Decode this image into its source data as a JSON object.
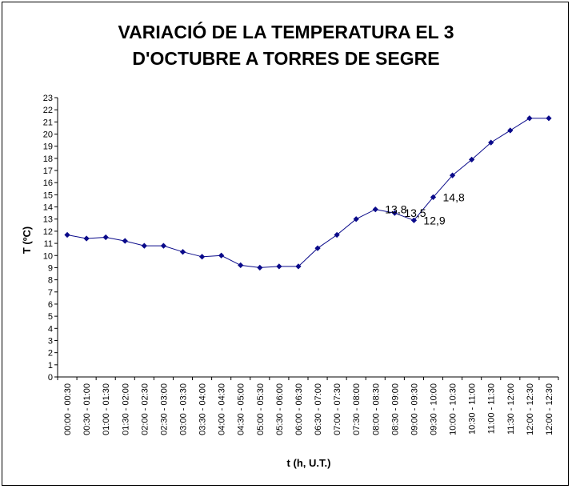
{
  "chart_data": {
    "type": "line",
    "title_lines": [
      "VARIACIÓ DE LA TEMPERATURA EL 3",
      "D'OCTUBRE A TORRES DE SEGRE"
    ],
    "xlabel": "t (h, U.T.)",
    "ylabel": "T (ºC)",
    "ylim": [
      0,
      23
    ],
    "ytick_step": 1,
    "grid": false,
    "legend": "none",
    "line_color": "#0a0a8a",
    "marker_color": "#0a0a8a",
    "categories": [
      "00:00 - 00:30",
      "00:30 - 01:00",
      "01:00 - 01:30",
      "01:30 - 02:00",
      "02:00 - 02:30",
      "02:30 - 03:00",
      "03:00 - 03:30",
      "03:30 - 04:00",
      "04:00 - 04:30",
      "04:30 - 05:00",
      "05:00 - 05:30",
      "05:30 - 06:00",
      "06:00 - 06:30",
      "06:30 - 07:00",
      "07:00 - 07:30",
      "07:30 - 08:00",
      "08:00 - 08:30",
      "08:30 - 09:00",
      "09:00 - 09:30",
      "09:30 - 10:00",
      "10:00 - 10:30",
      "10:30 - 11:00",
      "11:00 - 11:30",
      "11:30 - 12:00",
      "12:00 - 12:30",
      "12:00 - 12:30"
    ],
    "values": [
      11.7,
      11.4,
      11.5,
      11.2,
      10.8,
      10.8,
      10.3,
      9.9,
      10.0,
      9.2,
      9.0,
      9.1,
      9.1,
      10.6,
      11.7,
      13.0,
      13.8,
      13.5,
      12.9,
      14.8,
      16.6,
      17.9,
      19.3,
      20.3,
      21.3,
      21.3
    ],
    "data_labels": [
      {
        "index": 16,
        "text": "13,8"
      },
      {
        "index": 17,
        "text": "13,5"
      },
      {
        "index": 18,
        "text": "12,9"
      },
      {
        "index": 19,
        "text": "14,8"
      }
    ]
  }
}
